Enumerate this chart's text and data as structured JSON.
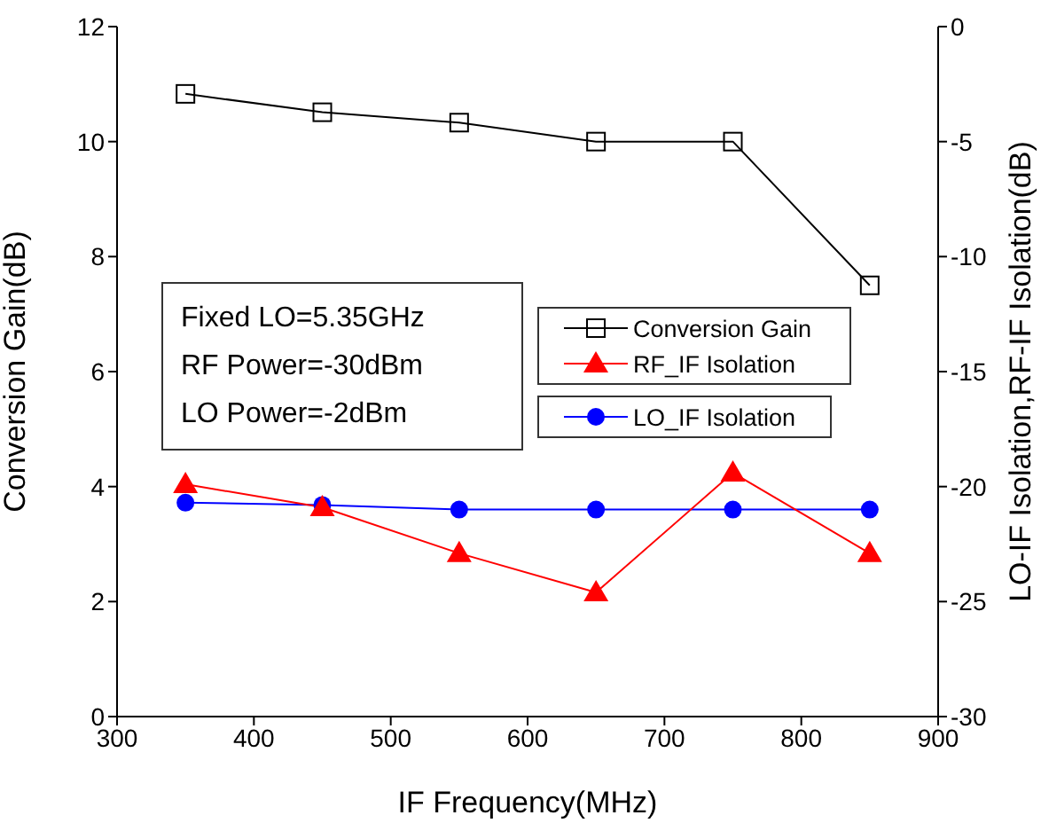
{
  "chart_data": {
    "type": "line",
    "xlabel": "IF Frequency(MHz)",
    "ylabel": "Conversion Gain(dB)",
    "y2label": "LO-IF Isolation,RF-IF Isolation(dB)",
    "x": [
      350,
      450,
      550,
      650,
      750,
      850
    ],
    "series": [
      {
        "name": "Conversion Gain",
        "color": "#000000",
        "marker": "square",
        "values": [
          10.83,
          10.51,
          10.33,
          10.0,
          10.0,
          7.5
        ]
      },
      {
        "name": "RF_IF Isolation",
        "color": "#ff0000",
        "marker": "triangle",
        "axis": "y2",
        "values": [
          -19.9,
          -20.9,
          -22.9,
          -24.6,
          -19.4,
          -22.9
        ]
      },
      {
        "name": "LO_IF Isolation",
        "color": "#0000ff",
        "marker": "circle",
        "axis": "y2",
        "values": [
          -20.7,
          -20.8,
          -21.0,
          -21.0,
          -21.0,
          -21.0
        ]
      }
    ],
    "xlim": [
      300,
      900
    ],
    "xticks": [
      300,
      400,
      500,
      600,
      700,
      800,
      900
    ],
    "ylim": [
      0,
      12
    ],
    "yticks": [
      0,
      2,
      4,
      6,
      8,
      10,
      12
    ],
    "y2lim": [
      -30,
      0
    ],
    "y2ticks": [
      -30,
      -25,
      -20,
      -15,
      -10,
      -5,
      0
    ],
    "annotations": [
      "Fixed LO=5.35GHz",
      "RF Power=-30dBm",
      "LO Power=-2dBm"
    ],
    "legend": "right",
    "grid": false
  }
}
